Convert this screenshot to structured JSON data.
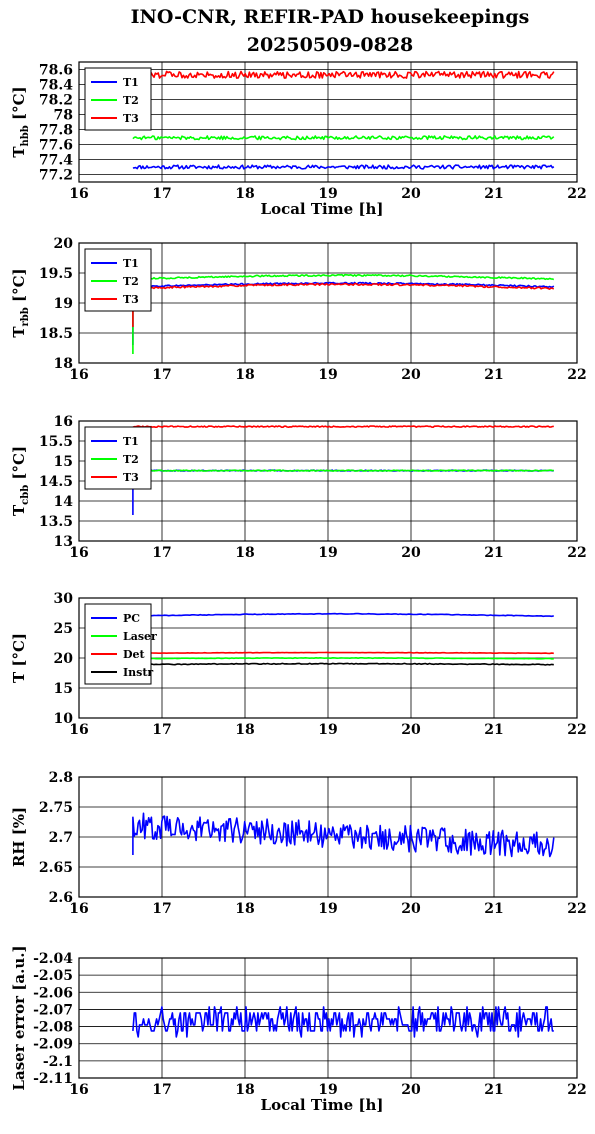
{
  "figure": {
    "title_line1": "INO-CNR, REFIR-PAD housekeepings",
    "title_line2": "20250509-0828"
  },
  "chart_data": [
    {
      "type": "line",
      "ylabel": "T_hbb [°C]",
      "xlabel": "Local Time [h]",
      "xlim": [
        16,
        22
      ],
      "ylim": [
        77.1,
        78.7
      ],
      "yticks": [
        "78.6",
        "78.4",
        "78.2",
        "78",
        "77.8",
        "77.6",
        "77.4",
        "77.2"
      ],
      "ytick_values": [
        78.6,
        78.4,
        78.2,
        78.0,
        77.8,
        77.6,
        77.4,
        77.2
      ],
      "xticks": [
        "16",
        "17",
        "18",
        "19",
        "20",
        "21",
        "22"
      ],
      "grid": true,
      "legend_position": "top-left",
      "series": [
        {
          "name": "T1",
          "color": "#0000ff",
          "x_start": 16.65,
          "x_end": 21.72,
          "points": 300,
          "base": 77.3,
          "noise": 0.025,
          "wave": [
            [
              0.0,
              0,
              1
            ]
          ],
          "step": null
        },
        {
          "name": "T2",
          "color": "#00ff00",
          "x_start": 16.65,
          "x_end": 21.72,
          "points": 300,
          "base": 77.69,
          "noise": 0.025,
          "wave": [
            [
              0.0,
              0,
              1
            ]
          ],
          "step": null
        },
        {
          "name": "T3",
          "color": "#ff0000",
          "x_start": 16.65,
          "x_end": 21.72,
          "points": 300,
          "base": 78.53,
          "noise": 0.045,
          "wave": [
            [
              0.0,
              0,
              1
            ]
          ],
          "step": null
        }
      ]
    },
    {
      "type": "line",
      "ylabel": "T_rbb [°C]",
      "xlabel": "",
      "xlim": [
        16,
        22
      ],
      "ylim": [
        18,
        20
      ],
      "yticks": [
        "20",
        "19.5",
        "19",
        "18.5",
        "18"
      ],
      "ytick_values": [
        20,
        19.5,
        19,
        18.5,
        18
      ],
      "xticks": [
        "16",
        "17",
        "18",
        "19",
        "20",
        "21",
        "22"
      ],
      "grid": true,
      "legend_position": "top-left",
      "series": [
        {
          "name": "T1",
          "color": "#0000ff",
          "x_start": 16.65,
          "x_end": 21.72,
          "points": 300,
          "base": 19.27,
          "noise": 0.012,
          "wave": [
            [
              0.06,
              3.5,
              -1
            ]
          ],
          "step": [
            16.65,
            18.3
          ]
        },
        {
          "name": "T2",
          "color": "#00ff00",
          "x_start": 16.65,
          "x_end": 21.72,
          "points": 300,
          "base": 19.4,
          "noise": 0.012,
          "wave": [
            [
              0.06,
              3.5,
              -1
            ]
          ],
          "step": [
            16.65,
            18.15
          ]
        },
        {
          "name": "T3",
          "color": "#ff0000",
          "x_start": 16.65,
          "x_end": 21.72,
          "points": 300,
          "base": 19.24,
          "noise": 0.014,
          "wave": [
            [
              0.07,
              3.5,
              -1
            ]
          ],
          "step": [
            16.65,
            18.6
          ]
        }
      ]
    },
    {
      "type": "line",
      "ylabel": "T_cbb [°C]",
      "xlabel": "",
      "xlim": [
        16,
        22
      ],
      "ylim": [
        13,
        16
      ],
      "yticks": [
        "16",
        "15.5",
        "15",
        "14.5",
        "14",
        "13.5",
        "13"
      ],
      "ytick_values": [
        16,
        15.5,
        15,
        14.5,
        14,
        13.5,
        13
      ],
      "xticks": [
        "16",
        "17",
        "18",
        "19",
        "20",
        "21",
        "22"
      ],
      "grid": true,
      "legend_position": "top-left",
      "series": [
        {
          "name": "T1",
          "color": "#0000ff",
          "x_start": 16.65,
          "x_end": 21.72,
          "points": 300,
          "base": 14.76,
          "noise": 0.012,
          "wave": [
            [
              0.0,
              0,
              1
            ]
          ],
          "step": [
            16.65,
            13.65
          ]
        },
        {
          "name": "T2",
          "color": "#00ff00",
          "x_start": 16.65,
          "x_end": 21.72,
          "points": 300,
          "base": 14.76,
          "noise": 0.012,
          "wave": [
            [
              0.0,
              0,
              1
            ]
          ],
          "step": [
            16.65,
            14.45
          ]
        },
        {
          "name": "T3",
          "color": "#ff0000",
          "x_start": 16.65,
          "x_end": 21.72,
          "points": 300,
          "base": 15.86,
          "noise": 0.015,
          "wave": [
            [
              0.0,
              0,
              1
            ]
          ],
          "step": null
        }
      ]
    },
    {
      "type": "line",
      "ylabel": "T [°C]",
      "xlabel": "",
      "xlim": [
        16,
        22
      ],
      "ylim": [
        10,
        30
      ],
      "yticks": [
        "30",
        "25",
        "20",
        "15",
        "10"
      ],
      "ytick_values": [
        30,
        25,
        20,
        15,
        10
      ],
      "xticks": [
        "16",
        "17",
        "18",
        "19",
        "20",
        "21",
        "22"
      ],
      "grid": true,
      "legend_position": "top-left",
      "series": [
        {
          "name": "PC",
          "color": "#0000ff",
          "x_start": 16.65,
          "x_end": 21.72,
          "points": 200,
          "base": 27.0,
          "noise": 0.05,
          "wave": [
            [
              0.35,
              3.6,
              -1
            ]
          ],
          "step": null
        },
        {
          "name": "Laser",
          "color": "#00ff00",
          "x_start": 16.65,
          "x_end": 21.72,
          "points": 200,
          "base": 19.9,
          "noise": 0.04,
          "wave": [
            [
              0.1,
              3.6,
              -1
            ]
          ],
          "step": null
        },
        {
          "name": "Det",
          "color": "#ff0000",
          "x_start": 16.65,
          "x_end": 21.72,
          "points": 200,
          "base": 20.8,
          "noise": 0.03,
          "wave": [
            [
              0.1,
              3.6,
              -1
            ]
          ],
          "step": null
        },
        {
          "name": "Instr",
          "color": "#000000",
          "x_start": 16.65,
          "x_end": 21.72,
          "points": 200,
          "base": 18.9,
          "noise": 0.07,
          "wave": [
            [
              0.15,
              3.6,
              -1
            ]
          ],
          "step": null
        }
      ]
    },
    {
      "type": "line",
      "ylabel": "RH [%]",
      "xlabel": "",
      "xlim": [
        16,
        22
      ],
      "ylim": [
        2.6,
        2.8
      ],
      "yticks": [
        "2.8",
        "2.75",
        "2.7",
        "2.65",
        "2.6"
      ],
      "ytick_values": [
        2.8,
        2.75,
        2.7,
        2.65,
        2.6
      ],
      "xticks": [
        "16",
        "17",
        "18",
        "19",
        "20",
        "21",
        "22"
      ],
      "grid": true,
      "legend_position": "none",
      "series": [
        {
          "name": "",
          "color": "#0000ff",
          "x_start": 16.65,
          "x_end": 21.72,
          "points": 320,
          "base": 2.72,
          "noise": 0.022,
          "wave": [
            [
              -0.035,
              0,
              1
            ]
          ],
          "step": [
            16.65,
            2.67
          ]
        }
      ]
    },
    {
      "type": "line",
      "ylabel": "Laser error [a.u.]",
      "xlabel": "Local Time [h]",
      "xlim": [
        16,
        22
      ],
      "ylim": [
        -2.11,
        -2.04
      ],
      "yticks": [
        "-2.04",
        "-2.05",
        "-2.06",
        "-2.07",
        "-2.08",
        "-2.09",
        "-2.1",
        "-2.11"
      ],
      "ytick_values": [
        -2.04,
        -2.05,
        -2.06,
        -2.07,
        -2.08,
        -2.09,
        -2.1,
        -2.11
      ],
      "xticks": [
        "16",
        "17",
        "18",
        "19",
        "20",
        "21",
        "22"
      ],
      "grid": true,
      "legend_position": "none",
      "series": [
        {
          "name": "",
          "color": "#0000ff",
          "x_start": 16.65,
          "x_end": 21.72,
          "points": 320,
          "base": -2.077,
          "noise": 0.008,
          "wave": [
            [
              0.0,
              0,
              1
            ]
          ],
          "step": null,
          "quantum": 0.0035
        }
      ]
    }
  ]
}
